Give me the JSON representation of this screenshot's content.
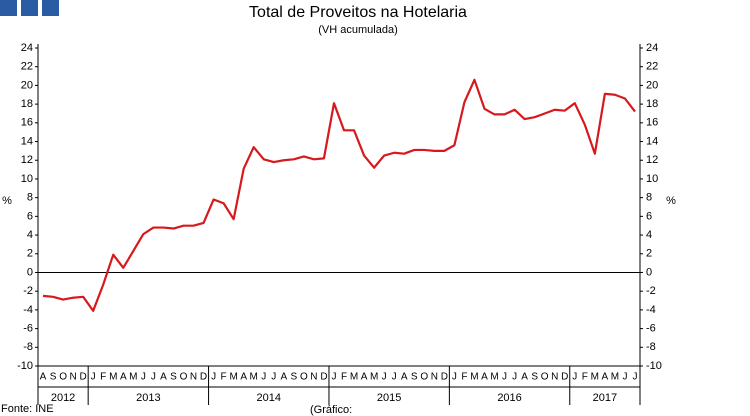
{
  "chart_data": {
    "type": "line",
    "title": "Total de Proveitos na Hotelaria",
    "subtitle": "(VH acumulada)",
    "y_label": "%",
    "y2_label": "%",
    "source": "Fonte: INE",
    "note": "(Gráfico:",
    "categories": [
      "A",
      "S",
      "O",
      "N",
      "D",
      "J",
      "F",
      "M",
      "A",
      "M",
      "J",
      "J",
      "A",
      "S",
      "O",
      "N",
      "D",
      "J",
      "F",
      "M",
      "A",
      "M",
      "J",
      "J",
      "A",
      "S",
      "O",
      "N",
      "D",
      "J",
      "F",
      "M",
      "A",
      "M",
      "J",
      "J",
      "A",
      "S",
      "O",
      "N",
      "D",
      "J",
      "F",
      "M",
      "A",
      "M",
      "J",
      "J",
      "A",
      "S",
      "O",
      "N",
      "D",
      "J",
      "F",
      "M",
      "A",
      "M",
      "J",
      "J"
    ],
    "years": [
      "2012",
      "2013",
      "2014",
      "2015",
      "2016",
      "2017"
    ],
    "values": [
      -2.5,
      -2.6,
      -2.9,
      -2.7,
      -2.6,
      -4.1,
      -1.3,
      1.9,
      0.5,
      2.3,
      4.1,
      4.8,
      4.8,
      4.7,
      5.0,
      5.0,
      5.3,
      7.8,
      7.4,
      5.7,
      11.1,
      13.4,
      12.1,
      11.8,
      12.0,
      12.1,
      12.4,
      12.1,
      12.2,
      18.1,
      15.2,
      15.2,
      12.5,
      11.2,
      12.5,
      12.8,
      12.7,
      13.1,
      13.1,
      13.0,
      13.0,
      13.6,
      18.2,
      20.6,
      17.5,
      16.9,
      16.9,
      17.4,
      16.4,
      16.6,
      17.0,
      17.4,
      17.3,
      18.1,
      15.8,
      12.7,
      19.1,
      19.0,
      18.6,
      17.2
    ],
    "color": "#d7191c",
    "ylim": [
      -10,
      24
    ],
    "yticks": [
      -10,
      -8,
      -6,
      -4,
      -2,
      0,
      2,
      4,
      6,
      8,
      10,
      12,
      14,
      16,
      18,
      20,
      22,
      24
    ],
    "y2lim": [
      -10,
      24
    ],
    "y2ticks": [
      -10,
      -8,
      -6,
      -4,
      -2,
      0,
      2,
      4,
      6,
      8,
      10,
      12,
      14,
      16,
      18,
      20,
      22,
      24
    ]
  }
}
